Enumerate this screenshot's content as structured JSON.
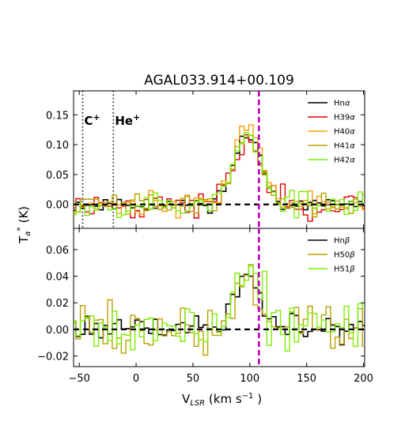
{
  "chart_data": {
    "type": "line",
    "title": "AGAL033.914+00.109",
    "xlabel": "V",
    "xlabel_sub": "LSR",
    "xlabel_unit": "(km s",
    "xlabel_exp": "−1",
    "xlabel_close": ")",
    "ylabel": "T",
    "ylabel_sub": "a",
    "ylabel_sup": "*",
    "ylabel_unit": "(K)",
    "xlim": [
      -55,
      201
    ],
    "xticks": [
      -50,
      0,
      50,
      100,
      150,
      200
    ],
    "xtick_labels": [
      "−50",
      "0",
      "50",
      "100",
      "150",
      "200"
    ],
    "vlsr_marker": {
      "x": 108,
      "color": "#bf00bf",
      "style": "dashed"
    },
    "panels": [
      {
        "name": "alpha",
        "ylim": [
          -0.04,
          0.19
        ],
        "yticks": [
          0.0,
          0.05,
          0.1,
          0.15
        ],
        "ytick_labels": [
          "0.00",
          "0.05",
          "0.10",
          "0.15"
        ],
        "markers": [
          {
            "x": -47,
            "label": "C",
            "sup": "+"
          },
          {
            "x": -20,
            "label": "He",
            "sup": "+"
          }
        ],
        "legend_position": "top-right",
        "series": [
          {
            "name": "Hn",
            "greek": "α",
            "color": "#000000",
            "peak": 0.115,
            "noise": 0.008,
            "seed": 11
          },
          {
            "name": "H39",
            "greek": "α",
            "color": "#e00000",
            "peak": 0.11,
            "noise": 0.016,
            "seed": 23
          },
          {
            "name": "H40",
            "greek": "α",
            "color": "#f5a000",
            "peak": 0.135,
            "noise": 0.013,
            "seed": 37
          },
          {
            "name": "H41",
            "greek": "α",
            "color": "#b8a000",
            "peak": 0.115,
            "noise": 0.013,
            "seed": 41
          },
          {
            "name": "H42",
            "greek": "α",
            "color": "#7cf000",
            "peak": 0.11,
            "noise": 0.016,
            "seed": 53
          }
        ]
      },
      {
        "name": "beta",
        "ylim": [
          -0.028,
          0.076
        ],
        "yticks": [
          -0.02,
          0.0,
          0.02,
          0.04,
          0.06
        ],
        "ytick_labels": [
          "−0.02",
          "0.00",
          "0.02",
          "0.04",
          "0.06"
        ],
        "markers": [],
        "legend_position": "top-right",
        "series": [
          {
            "name": "Hn",
            "greek": "β",
            "color": "#000000",
            "peak": 0.035,
            "noise": 0.008,
            "seed": 61
          },
          {
            "name": "H50",
            "greek": "β",
            "color": "#b8a000",
            "peak": 0.035,
            "noise": 0.014,
            "seed": 73
          },
          {
            "name": "H51",
            "greek": "β",
            "color": "#7cf000",
            "peak": 0.045,
            "noise": 0.016,
            "seed": 89
          }
        ]
      }
    ],
    "line_center": 98,
    "line_sigma": 12,
    "channel_width": 4
  }
}
